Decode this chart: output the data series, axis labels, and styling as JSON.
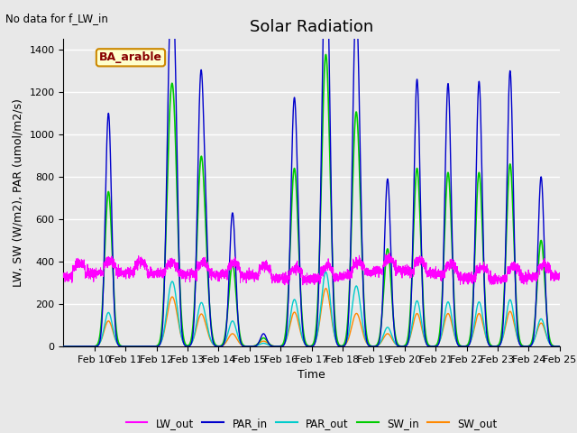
{
  "title": "Solar Radiation",
  "xlabel": "Time",
  "ylabel": "LW, SW (W/m2), PAR (umol/m2/s)",
  "annotation_text": "No data for f_LW_in",
  "box_label": "BA_arable",
  "ylim": [
    0,
    1450
  ],
  "yticks": [
    0,
    200,
    400,
    600,
    800,
    1000,
    1200,
    1400
  ],
  "xlim_start": 9,
  "xlim_end": 25,
  "xtick_labels": [
    "Feb 10",
    "Feb 11",
    "Feb 12",
    "Feb 13",
    "Feb 14",
    "Feb 15",
    "Feb 16",
    "Feb 17",
    "Feb 18",
    "Feb 19",
    "Feb 20",
    "Feb 21",
    "Feb 22",
    "Feb 23",
    "Feb 24",
    "Feb 25"
  ],
  "line_colors": {
    "LW_out": "#ff00ff",
    "PAR_in": "#0000cc",
    "PAR_out": "#00cccc",
    "SW_in": "#00cc00",
    "SW_out": "#ff8800"
  },
  "legend_entries": [
    "LW_out",
    "PAR_in",
    "PAR_out",
    "SW_in",
    "SW_out"
  ],
  "background_color": "#e8e8e8",
  "grid_color": "#ffffff",
  "LW_out_base": 350,
  "title_fontsize": 13,
  "label_fontsize": 9,
  "tick_fontsize": 8
}
